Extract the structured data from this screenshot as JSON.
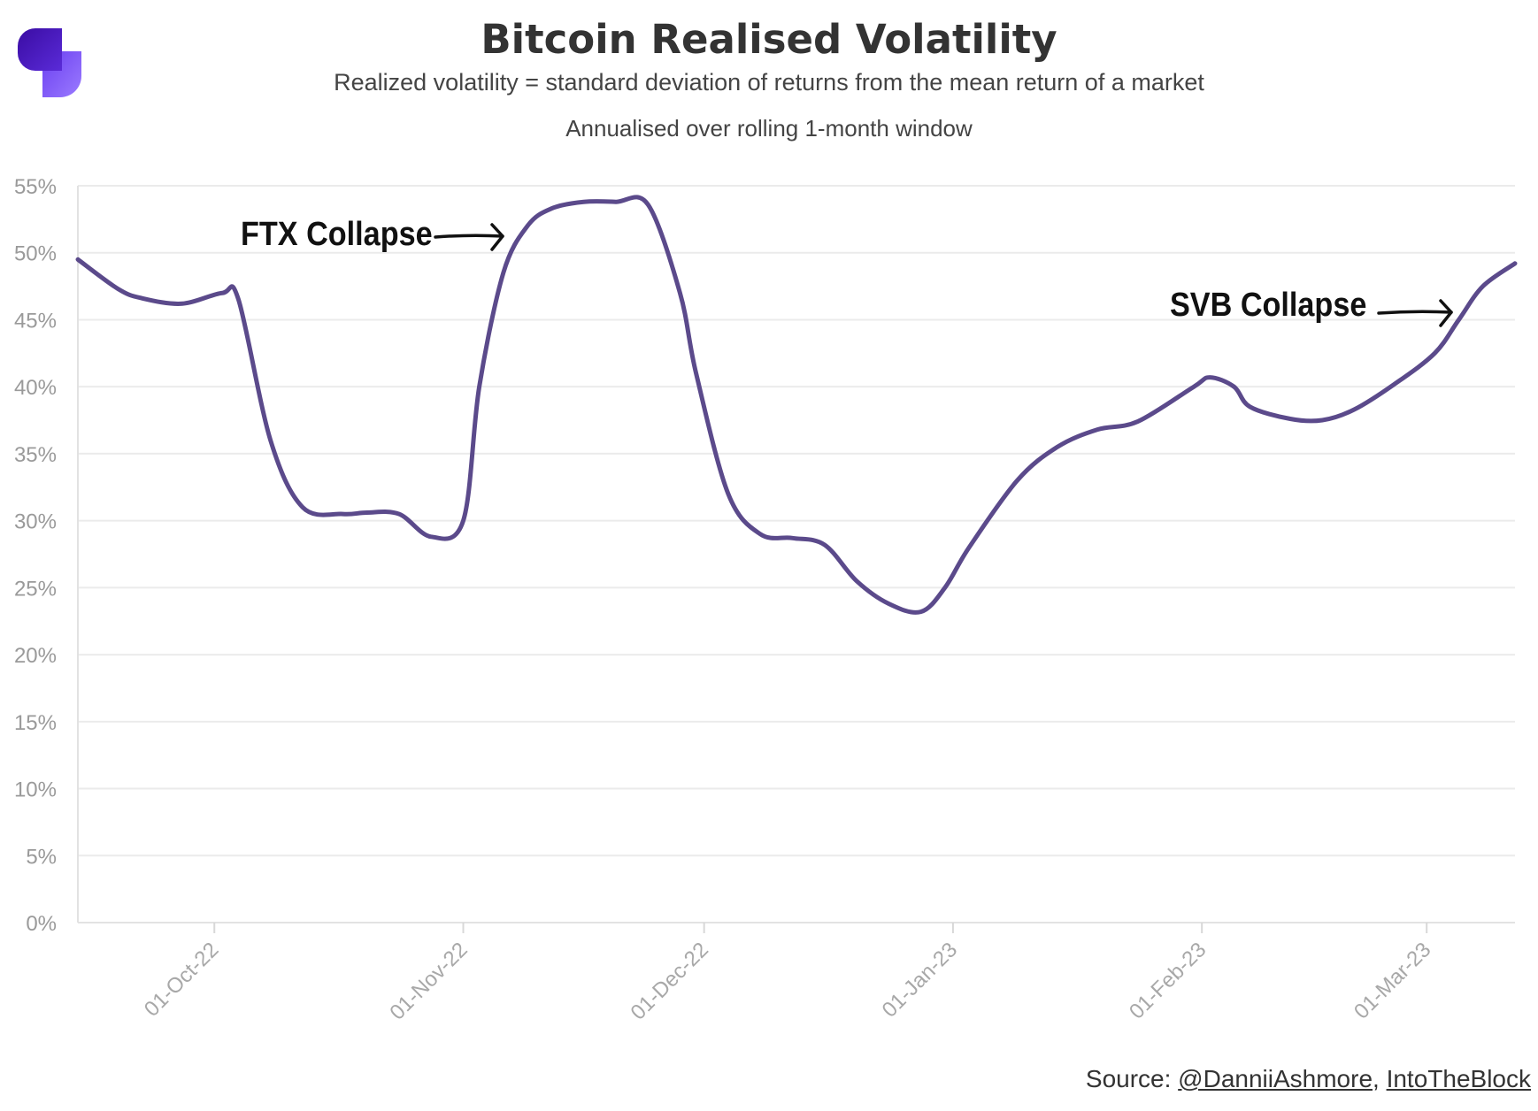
{
  "title": "Bitcoin Realised Volatility",
  "subtitle": "Realized volatility = standard deviation of returns from the mean return of a market",
  "subtitle2": "Annualised over rolling 1-month window",
  "source": {
    "prefix": "Source: ",
    "author": "@DanniiAshmore",
    "separator": ", ",
    "provider": "IntoTheBlock"
  },
  "logo": {
    "icon": "brand-logo-icon",
    "colors": [
      "#3a0ca3",
      "#7b5cf0"
    ]
  },
  "line_color": "#5b4a8b",
  "chart_data": {
    "type": "line",
    "title": "Bitcoin Realised Volatility",
    "xlabel": "",
    "ylabel": "",
    "x_type": "date",
    "xlim": [
      "2022-09-14",
      "2023-03-12"
    ],
    "ylim": [
      0,
      55
    ],
    "y_ticks": [
      "0%",
      "5%",
      "10%",
      "15%",
      "20%",
      "25%",
      "30%",
      "35%",
      "40%",
      "45%",
      "50%",
      "55%"
    ],
    "x_ticks": [
      {
        "date": "2022-10-01",
        "label": "01-Oct-22"
      },
      {
        "date": "2022-11-01",
        "label": "01-Nov-22"
      },
      {
        "date": "2022-12-01",
        "label": "01-Dec-22"
      },
      {
        "date": "2023-01-01",
        "label": "01-Jan-23"
      },
      {
        "date": "2023-02-01",
        "label": "01-Feb-23"
      },
      {
        "date": "2023-03-01",
        "label": "01-Mar-23"
      }
    ],
    "grid": true,
    "legend": "none",
    "series": [
      {
        "x": [
          "2022-09-14",
          "2022-09-19",
          "2022-09-22",
          "2022-09-27",
          "2022-10-02",
          "2022-10-04",
          "2022-10-08",
          "2022-10-12",
          "2022-10-17",
          "2022-10-20",
          "2022-10-24",
          "2022-10-28",
          "2022-11-01",
          "2022-11-03",
          "2022-11-06",
          "2022-11-09",
          "2022-11-12",
          "2022-11-16",
          "2022-11-20",
          "2022-11-24",
          "2022-11-28",
          "2022-11-30",
          "2022-12-04",
          "2022-12-08",
          "2022-12-12",
          "2022-12-16",
          "2022-12-20",
          "2022-12-24",
          "2022-12-28",
          "2022-12-31",
          "2023-01-03",
          "2023-01-09",
          "2023-01-14",
          "2023-01-19",
          "2023-01-24",
          "2023-01-31",
          "2023-02-02",
          "2023-02-05",
          "2023-02-07",
          "2023-02-12",
          "2023-02-16",
          "2023-02-20",
          "2023-02-25",
          "2023-03-02",
          "2023-03-05",
          "2023-03-08",
          "2023-03-12"
        ],
        "values": [
          49.5,
          47.3,
          46.6,
          46.2,
          47.0,
          46.5,
          36.0,
          31.0,
          30.5,
          30.6,
          30.5,
          28.8,
          30.0,
          40.0,
          48.5,
          52.0,
          53.3,
          53.8,
          53.8,
          53.6,
          47.0,
          41.0,
          32.0,
          29.0,
          28.7,
          28.2,
          25.5,
          23.8,
          23.2,
          25.0,
          28.0,
          33.0,
          35.5,
          36.8,
          37.4,
          40.0,
          40.7,
          40.0,
          38.5,
          37.6,
          37.5,
          38.3,
          40.2,
          42.5,
          45.0,
          47.5,
          49.2
        ]
      }
    ],
    "annotations": [
      {
        "text": "FTX Collapse",
        "arrow_to_date": "2022-11-05"
      },
      {
        "text": "SVB Collapse",
        "arrow_to_date": "2023-03-05"
      }
    ]
  }
}
